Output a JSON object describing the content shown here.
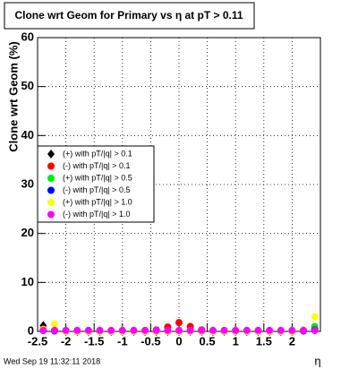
{
  "chart_data": {
    "type": "scatter",
    "title": "Clone wrt Geom for Primary vs    η at pT > 0.11",
    "y_label": "Clone wrt Geom (%)",
    "x_label": "η",
    "footer": "Wed Sep 19 11:32:11 2018",
    "x": [
      -2.4,
      -2.2,
      -2.0,
      -1.8,
      -1.6,
      -1.4,
      -1.2,
      -1.0,
      -0.8,
      -0.6,
      -0.4,
      -0.2,
      0.0,
      0.2,
      0.4,
      0.6,
      0.8,
      1.0,
      1.2,
      1.4,
      1.6,
      1.8,
      2.0,
      2.2,
      2.4
    ],
    "xlim": [
      -2.5,
      2.5
    ],
    "xticks": [
      -2.5,
      -2,
      -1.5,
      -1,
      -0.5,
      0,
      0.5,
      1,
      1.5,
      2
    ],
    "ylim": [
      0,
      60
    ],
    "yticks": [
      0,
      10,
      20,
      30,
      40,
      50,
      60
    ],
    "grid": true,
    "series": [
      {
        "name": "(+) with pT/|q| > 0.1",
        "color": "#000000",
        "values": [
          1.2,
          0.3,
          0,
          0,
          0,
          0,
          0,
          0,
          0,
          0,
          0,
          0,
          0,
          0,
          0,
          0,
          0,
          0,
          0,
          0,
          0,
          0,
          0,
          0.2,
          0.5
        ]
      },
      {
        "name": "(-) with pT/|q| > 0.1",
        "color": "#ff0000",
        "values": [
          0.5,
          0.2,
          0,
          0,
          0,
          0,
          0,
          0,
          0,
          0.1,
          0.3,
          0.9,
          1.8,
          1.0,
          0.3,
          0.1,
          0,
          0,
          0,
          0,
          0,
          0,
          0,
          0.2,
          0.5
        ]
      },
      {
        "name": "(+) with pT/|q| > 0.5",
        "color": "#00ee00",
        "values": [
          0.3,
          0.1,
          0,
          0,
          0,
          0,
          0,
          0,
          0,
          0,
          0,
          0,
          0,
          0,
          0,
          0,
          0,
          0,
          0,
          0,
          0,
          0,
          0,
          0.2,
          1.0
        ]
      },
      {
        "name": "(-) with pT/|q| > 0.5",
        "color": "#0000ff",
        "values": [
          0.2,
          0.1,
          0,
          0,
          0,
          0,
          0,
          0,
          0,
          0,
          0,
          0,
          0,
          0,
          0,
          0,
          0,
          0,
          0,
          0,
          0,
          0,
          0,
          0.1,
          0.3
        ]
      },
      {
        "name": "(+) with pT/|q| > 1.0",
        "color": "#ffff00",
        "values": [
          0.4,
          1.5,
          0,
          0,
          0,
          0,
          0,
          0,
          0,
          0,
          0,
          0,
          0,
          0,
          0,
          0,
          0,
          0,
          0,
          0,
          0,
          0,
          0,
          0.3,
          3.0
        ]
      },
      {
        "name": "(-) with pT/|q| > 1.0",
        "color": "#ff00ff",
        "values": [
          0.2,
          0.2,
          0.2,
          0.2,
          0.2,
          0.2,
          0.2,
          0.2,
          0.2,
          0.2,
          0.2,
          0.2,
          0.2,
          0.2,
          0.2,
          0.2,
          0.2,
          0.2,
          0.2,
          0.2,
          0.2,
          0.2,
          0.2,
          0.2,
          0.2
        ]
      }
    ]
  }
}
